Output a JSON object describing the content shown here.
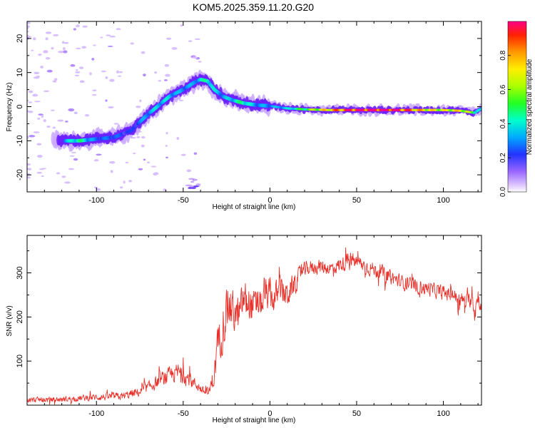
{
  "title": "KOM5.2025.359.11.20.G20",
  "chart_data": [
    {
      "type": "heatmap",
      "xlabel": "Height of straight line (km)",
      "ylabel": "Frequency (Hz)",
      "xlim": [
        -140,
        122
      ],
      "ylim": [
        -25,
        25
      ],
      "xticks": [
        -100,
        -50,
        0,
        50,
        100
      ],
      "yticks": [
        -20,
        -10,
        0,
        10,
        20
      ],
      "ridge": {
        "x": [
          -118,
          -110,
          -100,
          -90,
          -80,
          -72,
          -65,
          -58,
          -52,
          -47,
          -44,
          -40,
          -36,
          -32,
          -27,
          -22,
          -15,
          -8,
          0,
          10,
          20,
          35,
          50,
          70,
          90,
          100,
          110,
          118,
          122
        ],
        "f": [
          -10,
          -10,
          -9.5,
          -9,
          -7,
          -3,
          0,
          3,
          4.5,
          6,
          7,
          8,
          7.5,
          5,
          3,
          2,
          1,
          0.5,
          0.2,
          -0.5,
          -0.8,
          -1,
          -1,
          -1,
          -1,
          -1,
          -1.2,
          -1.8,
          -0.5
        ],
        "amp": [
          0.3,
          0.45,
          0.25,
          0.25,
          0.2,
          0.3,
          0.35,
          0.35,
          0.3,
          0.3,
          0.3,
          0.35,
          0.45,
          0.35,
          0.3,
          0.35,
          0.45,
          0.3,
          0.3,
          0.35,
          0.5,
          0.75,
          0.95,
          1.0,
          0.7,
          0.65,
          0.7,
          0.5,
          0.3
        ]
      },
      "colorbar": {
        "label": "Normalized spectral amplitude",
        "ticks": [
          0.0,
          0.2,
          0.4,
          0.6,
          0.8
        ],
        "range": [
          0,
          1
        ]
      }
    },
    {
      "type": "line",
      "xlabel": "Height of straight line (km)",
      "ylabel": "SNR (v/v)",
      "xlim": [
        -140,
        122
      ],
      "ylim": [
        0,
        385
      ],
      "xticks": [
        -100,
        -50,
        0,
        50,
        100
      ],
      "yticks": [
        100,
        200,
        300
      ],
      "color": "#e8312a",
      "series": [
        {
          "name": "SNR",
          "x": [
            -140,
            -120,
            -100,
            -85,
            -75,
            -68,
            -62,
            -56,
            -52,
            -47,
            -42,
            -38,
            -35,
            -32,
            -30,
            -27,
            -24,
            -21,
            -18,
            -15,
            -12,
            -8,
            -5,
            -2,
            2,
            6,
            10,
            15,
            18,
            22,
            28,
            35,
            42,
            47,
            55,
            65,
            75,
            85,
            95,
            100,
            105,
            110,
            114,
            117,
            118,
            120,
            122
          ],
          "y": [
            12,
            13,
            18,
            20,
            30,
            45,
            60,
            70,
            75,
            60,
            45,
            30,
            30,
            70,
            140,
            180,
            230,
            210,
            200,
            240,
            230,
            220,
            230,
            250,
            240,
            260,
            250,
            280,
            300,
            310,
            315,
            310,
            320,
            330,
            315,
            300,
            280,
            270,
            260,
            255,
            250,
            240,
            235,
            245,
            210,
            250,
            215
          ],
          "noise": [
            8,
            8,
            10,
            12,
            14,
            18,
            22,
            25,
            30,
            22,
            16,
            12,
            15,
            40,
            60,
            70,
            70,
            60,
            55,
            60,
            55,
            50,
            45,
            50,
            45,
            45,
            40,
            30,
            25,
            22,
            22,
            22,
            22,
            24,
            22,
            22,
            22,
            22,
            22,
            22,
            22,
            22,
            22,
            25,
            40,
            25,
            20
          ]
        }
      ]
    }
  ]
}
